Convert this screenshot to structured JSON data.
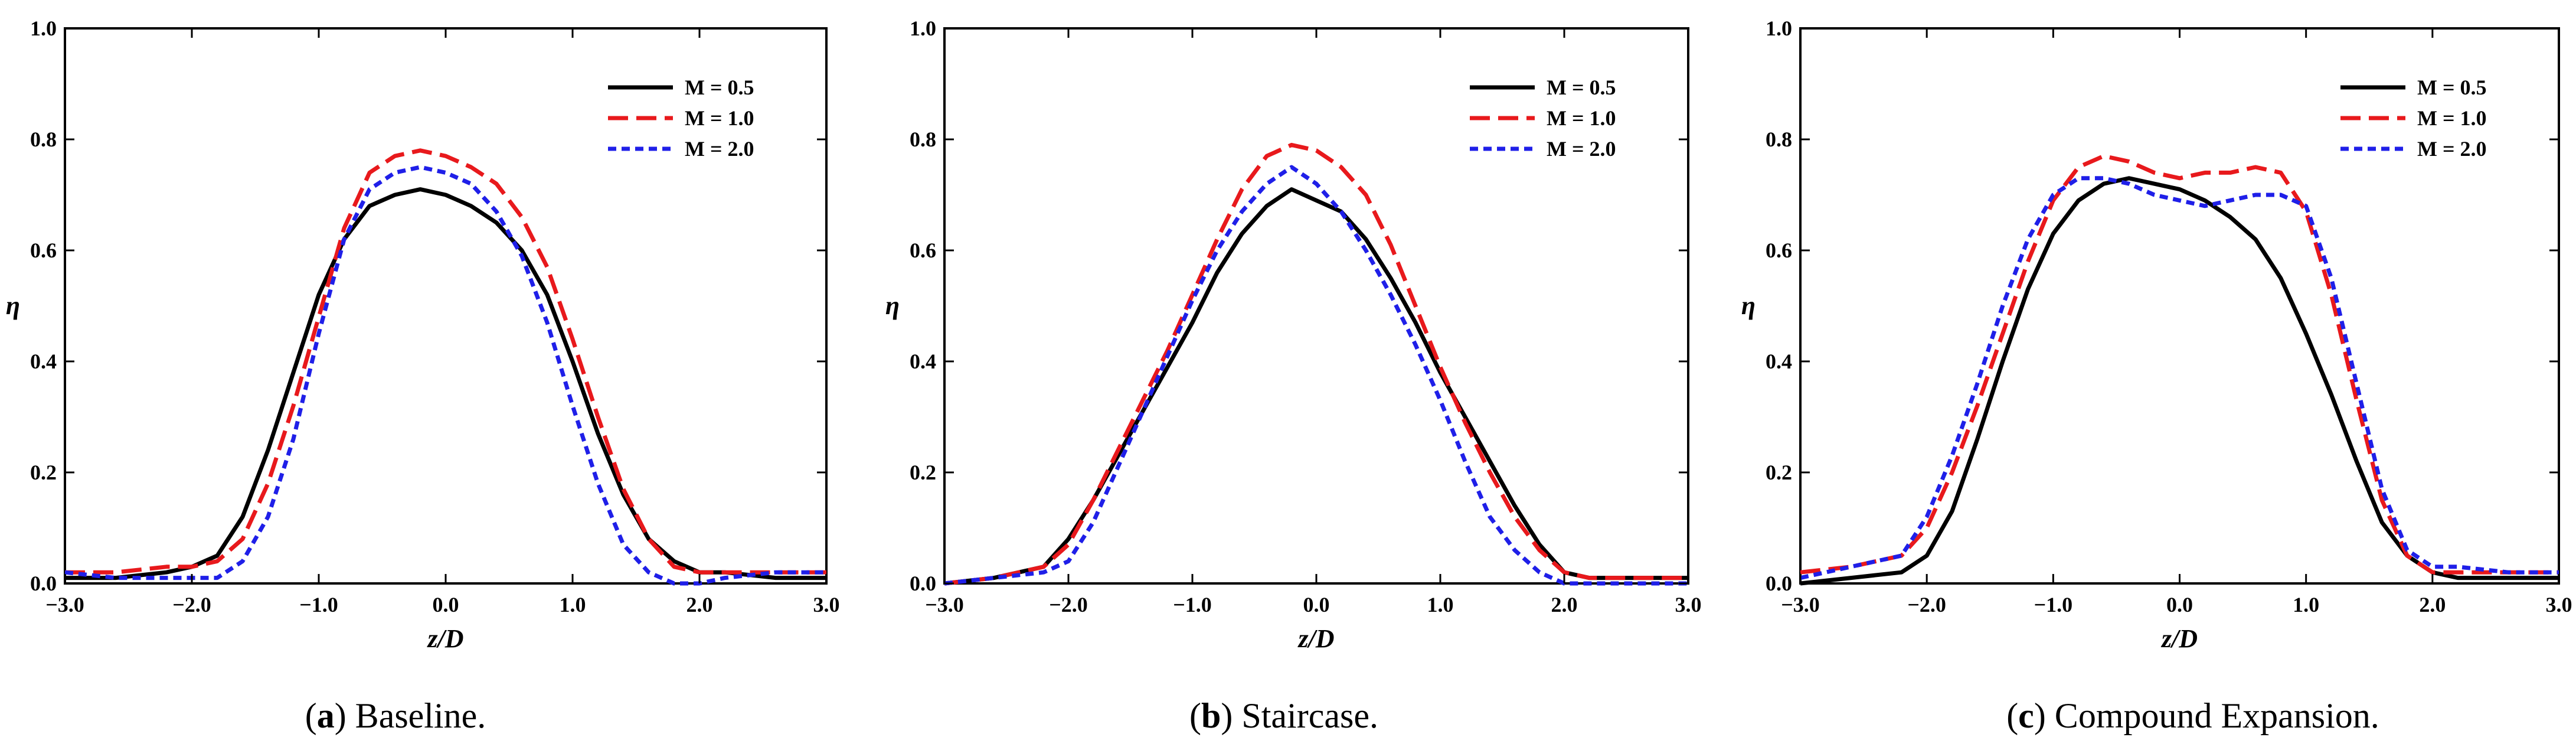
{
  "figure": {
    "panel_labels": [
      "a",
      "b",
      "c"
    ],
    "captions": [
      "Baseline.",
      "Staircase.",
      "Compound Expansion."
    ]
  },
  "series_colors": {
    "M = 0.5": "#000000",
    "M = 1.0": "#e8191c",
    "M = 2.0": "#1f1fe8"
  },
  "chart_data": [
    {
      "type": "line",
      "panel": "a",
      "title": "Baseline.",
      "xlabel": "z/D",
      "ylabel": "η",
      "xlim": [
        -3.0,
        3.0
      ],
      "ylim": [
        0.0,
        1.0
      ],
      "xticks": [
        "-3.0",
        "-2.0",
        "-1.0",
        "0.0",
        "1.0",
        "2.0",
        "3.0"
      ],
      "yticks": [
        "0.0",
        "0.2",
        "0.4",
        "0.6",
        "0.8",
        "1.0"
      ],
      "legend": [
        "M = 0.5",
        "M = 1.0",
        "M = 2.0"
      ],
      "legend_position": "top-right",
      "series": [
        {
          "name": "M = 0.5",
          "x": [
            -3.0,
            -2.6,
            -2.2,
            -2.0,
            -1.8,
            -1.6,
            -1.4,
            -1.2,
            -1.0,
            -0.8,
            -0.6,
            -0.4,
            -0.2,
            0.0,
            0.2,
            0.4,
            0.6,
            0.8,
            1.0,
            1.2,
            1.4,
            1.6,
            1.8,
            2.0,
            2.2,
            2.6,
            3.0
          ],
          "y": [
            0.01,
            0.01,
            0.02,
            0.03,
            0.05,
            0.12,
            0.24,
            0.38,
            0.52,
            0.62,
            0.68,
            0.7,
            0.71,
            0.7,
            0.68,
            0.65,
            0.6,
            0.52,
            0.4,
            0.27,
            0.16,
            0.08,
            0.04,
            0.02,
            0.02,
            0.01,
            0.01
          ]
        },
        {
          "name": "M = 1.0",
          "x": [
            -3.0,
            -2.6,
            -2.2,
            -2.0,
            -1.8,
            -1.6,
            -1.4,
            -1.2,
            -1.0,
            -0.8,
            -0.6,
            -0.4,
            -0.2,
            0.0,
            0.2,
            0.4,
            0.6,
            0.8,
            1.0,
            1.2,
            1.4,
            1.6,
            1.8,
            2.0,
            2.2,
            2.6,
            3.0
          ],
          "y": [
            0.02,
            0.02,
            0.03,
            0.03,
            0.04,
            0.08,
            0.18,
            0.32,
            0.48,
            0.64,
            0.74,
            0.77,
            0.78,
            0.77,
            0.75,
            0.72,
            0.66,
            0.57,
            0.44,
            0.3,
            0.17,
            0.08,
            0.03,
            0.02,
            0.02,
            0.02,
            0.02
          ]
        },
        {
          "name": "M = 2.0",
          "x": [
            -3.0,
            -2.6,
            -2.2,
            -2.0,
            -1.8,
            -1.6,
            -1.4,
            -1.2,
            -1.0,
            -0.8,
            -0.6,
            -0.4,
            -0.2,
            0.0,
            0.2,
            0.4,
            0.6,
            0.8,
            1.0,
            1.2,
            1.4,
            1.6,
            1.8,
            2.0,
            2.2,
            2.6,
            3.0
          ],
          "y": [
            0.02,
            0.01,
            0.01,
            0.01,
            0.01,
            0.04,
            0.12,
            0.26,
            0.45,
            0.62,
            0.71,
            0.74,
            0.75,
            0.74,
            0.72,
            0.67,
            0.59,
            0.47,
            0.32,
            0.18,
            0.07,
            0.02,
            0.0,
            0.0,
            0.01,
            0.02,
            0.02
          ]
        }
      ]
    },
    {
      "type": "line",
      "panel": "b",
      "title": "Staircase.",
      "xlabel": "z/D",
      "ylabel": "η",
      "xlim": [
        -3.0,
        3.0
      ],
      "ylim": [
        0.0,
        1.0
      ],
      "xticks": [
        "-3.0",
        "-2.0",
        "-1.0",
        "0.0",
        "1.0",
        "2.0",
        "3.0"
      ],
      "yticks": [
        "0.0",
        "0.2",
        "0.4",
        "0.6",
        "0.8",
        "1.0"
      ],
      "legend": [
        "M = 0.5",
        "M = 1.0",
        "M = 2.0"
      ],
      "legend_position": "top-right",
      "series": [
        {
          "name": "M = 0.5",
          "x": [
            -3.0,
            -2.6,
            -2.2,
            -2.0,
            -1.8,
            -1.6,
            -1.4,
            -1.2,
            -1.0,
            -0.8,
            -0.6,
            -0.4,
            -0.2,
            0.0,
            0.2,
            0.4,
            0.6,
            0.8,
            1.0,
            1.2,
            1.4,
            1.6,
            1.8,
            2.0,
            2.2,
            2.6,
            3.0
          ],
          "y": [
            0.0,
            0.01,
            0.03,
            0.08,
            0.15,
            0.23,
            0.31,
            0.39,
            0.47,
            0.56,
            0.63,
            0.68,
            0.71,
            0.69,
            0.67,
            0.62,
            0.55,
            0.47,
            0.38,
            0.3,
            0.22,
            0.14,
            0.07,
            0.02,
            0.01,
            0.01,
            0.01
          ]
        },
        {
          "name": "M = 1.0",
          "x": [
            -3.0,
            -2.6,
            -2.2,
            -2.0,
            -1.8,
            -1.6,
            -1.4,
            -1.2,
            -1.0,
            -0.8,
            -0.6,
            -0.4,
            -0.2,
            0.0,
            0.2,
            0.4,
            0.6,
            0.8,
            1.0,
            1.2,
            1.4,
            1.6,
            1.8,
            2.0,
            2.2,
            2.6,
            3.0
          ],
          "y": [
            0.0,
            0.01,
            0.03,
            0.07,
            0.15,
            0.24,
            0.33,
            0.42,
            0.52,
            0.62,
            0.71,
            0.77,
            0.79,
            0.78,
            0.75,
            0.7,
            0.61,
            0.5,
            0.39,
            0.29,
            0.2,
            0.12,
            0.06,
            0.02,
            0.01,
            0.01,
            0.01
          ]
        },
        {
          "name": "M = 2.0",
          "x": [
            -3.0,
            -2.6,
            -2.2,
            -2.0,
            -1.8,
            -1.6,
            -1.4,
            -1.2,
            -1.0,
            -0.8,
            -0.6,
            -0.4,
            -0.2,
            0.0,
            0.2,
            0.4,
            0.6,
            0.8,
            1.0,
            1.2,
            1.4,
            1.6,
            1.8,
            2.0,
            2.2,
            2.6,
            3.0
          ],
          "y": [
            0.0,
            0.01,
            0.02,
            0.04,
            0.11,
            0.21,
            0.31,
            0.41,
            0.51,
            0.6,
            0.67,
            0.72,
            0.75,
            0.72,
            0.67,
            0.6,
            0.52,
            0.43,
            0.33,
            0.22,
            0.12,
            0.06,
            0.02,
            0.0,
            0.0,
            0.0,
            0.0
          ]
        }
      ]
    },
    {
      "type": "line",
      "panel": "c",
      "title": "Compound Expansion.",
      "xlabel": "z/D",
      "ylabel": "η",
      "xlim": [
        -3.0,
        3.0
      ],
      "ylim": [
        0.0,
        1.0
      ],
      "xticks": [
        "-3.0",
        "-2.0",
        "-1.0",
        "0.0",
        "1.0",
        "2.0",
        "3.0"
      ],
      "yticks": [
        "0.0",
        "0.2",
        "0.4",
        "0.6",
        "0.8",
        "1.0"
      ],
      "legend": [
        "M = 0.5",
        "M = 1.0",
        "M = 2.0"
      ],
      "legend_position": "top-right",
      "series": [
        {
          "name": "M = 0.5",
          "x": [
            -3.0,
            -2.6,
            -2.2,
            -2.0,
            -1.8,
            -1.6,
            -1.4,
            -1.2,
            -1.0,
            -0.8,
            -0.6,
            -0.4,
            -0.2,
            0.0,
            0.2,
            0.4,
            0.6,
            0.8,
            1.0,
            1.2,
            1.4,
            1.6,
            1.8,
            2.0,
            2.2,
            2.6,
            3.0
          ],
          "y": [
            0.0,
            0.01,
            0.02,
            0.05,
            0.13,
            0.26,
            0.4,
            0.53,
            0.63,
            0.69,
            0.72,
            0.73,
            0.72,
            0.71,
            0.69,
            0.66,
            0.62,
            0.55,
            0.45,
            0.34,
            0.22,
            0.11,
            0.05,
            0.02,
            0.01,
            0.01,
            0.01
          ]
        },
        {
          "name": "M = 1.0",
          "x": [
            -3.0,
            -2.6,
            -2.2,
            -2.0,
            -1.8,
            -1.6,
            -1.4,
            -1.2,
            -1.0,
            -0.8,
            -0.6,
            -0.4,
            -0.2,
            0.0,
            0.2,
            0.4,
            0.6,
            0.8,
            1.0,
            1.2,
            1.4,
            1.6,
            1.8,
            2.0,
            2.2,
            2.6,
            3.0
          ],
          "y": [
            0.02,
            0.03,
            0.05,
            0.1,
            0.2,
            0.32,
            0.45,
            0.58,
            0.69,
            0.75,
            0.77,
            0.76,
            0.74,
            0.73,
            0.74,
            0.74,
            0.75,
            0.74,
            0.67,
            0.52,
            0.33,
            0.15,
            0.05,
            0.02,
            0.02,
            0.02,
            0.02
          ]
        },
        {
          "name": "M = 2.0",
          "x": [
            -3.0,
            -2.6,
            -2.2,
            -2.0,
            -1.8,
            -1.6,
            -1.4,
            -1.2,
            -1.0,
            -0.8,
            -0.6,
            -0.4,
            -0.2,
            0.0,
            0.2,
            0.4,
            0.6,
            0.8,
            1.0,
            1.2,
            1.4,
            1.6,
            1.8,
            2.0,
            2.2,
            2.6,
            3.0
          ],
          "y": [
            0.01,
            0.03,
            0.05,
            0.12,
            0.23,
            0.36,
            0.5,
            0.62,
            0.7,
            0.73,
            0.73,
            0.72,
            0.7,
            0.69,
            0.68,
            0.69,
            0.7,
            0.7,
            0.68,
            0.55,
            0.36,
            0.17,
            0.06,
            0.03,
            0.03,
            0.02,
            0.02
          ]
        }
      ]
    }
  ]
}
